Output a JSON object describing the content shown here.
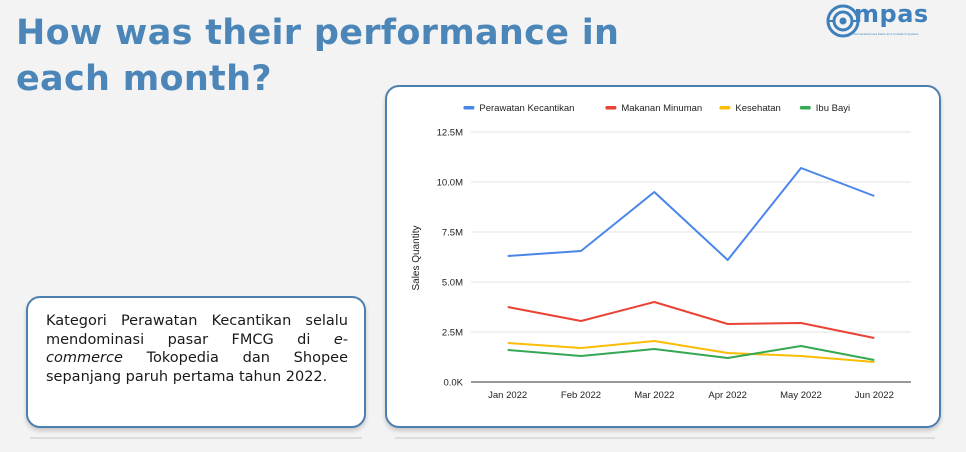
{
  "slide": {
    "title": "How was their performance in each month?",
    "logo": {
      "text": "mpas",
      "subtitle": "Komprehensive Data and Analytics System",
      "accent_color": "#3f80bc"
    },
    "note": {
      "part1": "Kategori Perawatan Kecantikan selalu mendominasi pasar FMCG di ",
      "emphasis": "e-commerce",
      "part2": " Tokopedia dan Shopee sepanjang paruh pertama tahun 2022."
    }
  },
  "chart_data": {
    "type": "line",
    "title": "",
    "xlabel": "",
    "ylabel": "Sales Quantity",
    "categories": [
      "Jan 2022",
      "Feb 2022",
      "Mar 2022",
      "Apr 2022",
      "May 2022",
      "Jun 2022"
    ],
    "ylim": [
      0,
      12500000
    ],
    "yticks": [
      0,
      2500000,
      5000000,
      7500000,
      10000000,
      12500000
    ],
    "ytick_labels": [
      "0.0K",
      "2.5M",
      "5.0M",
      "7.5M",
      "10.0M",
      "12.5M"
    ],
    "grid": true,
    "legend_position": "top",
    "series": [
      {
        "name": "Perawatan Kecantikan",
        "color": "#4a86e8",
        "values": [
          6300000,
          6550000,
          9500000,
          6100000,
          10700000,
          9300000
        ]
      },
      {
        "name": "Makanan Minuman",
        "color": "#ea4335",
        "values": [
          3750000,
          3050000,
          4000000,
          2900000,
          2950000,
          2200000
        ]
      },
      {
        "name": "Kesehatan",
        "color": "#fbbc04",
        "values": [
          1950000,
          1700000,
          2050000,
          1450000,
          1300000,
          1000000
        ]
      },
      {
        "name": "Ibu Bayi",
        "color": "#34a853",
        "values": [
          1600000,
          1300000,
          1650000,
          1200000,
          1800000,
          1100000
        ]
      }
    ]
  }
}
